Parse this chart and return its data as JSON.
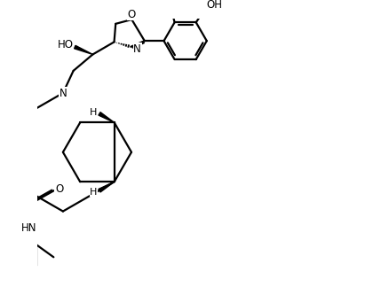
{
  "bg_color": "#ffffff",
  "line_color": "#000000",
  "line_width": 1.6,
  "font_size": 8.5,
  "fig_width": 4.2,
  "fig_height": 3.24,
  "dpi": 100,
  "xlim": [
    0,
    10
  ],
  "ylim": [
    0,
    9
  ]
}
